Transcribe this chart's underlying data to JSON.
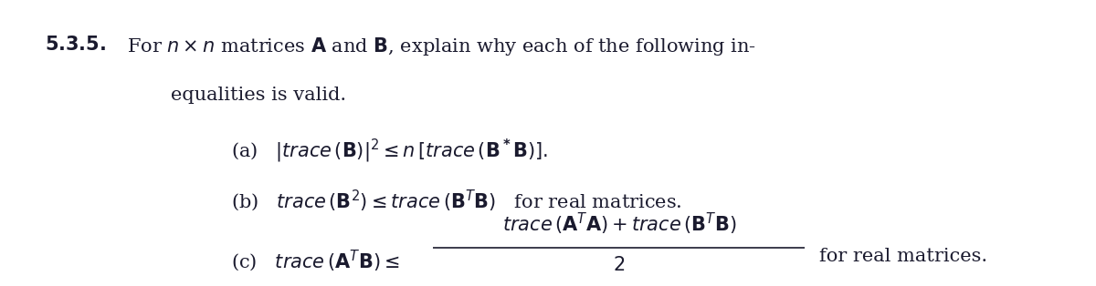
{
  "figsize": [
    12.0,
    3.14
  ],
  "dpi": 100,
  "background_color": "#ffffff",
  "title_bold": "5.3.5.",
  "title_text": " For $n \\times n$ matrices $\\mathbf{A}$ and $\\mathbf{B}$, explain why each of the following in-",
  "line2": "equalities is valid.",
  "item_a": "(a)   $|{\\it trace}\\,(\\mathbf{B})|^2 \\leq n\\,[{\\it trace}\\,(\\mathbf{B^*B})].$",
  "item_b": "(b)   ${\\it trace}\\,(\\mathbf{B}^2) \\leq {\\it trace}\\,(\\mathbf{B}^T\\mathbf{B})$  for real matrices.",
  "item_c_left": "(c)   ${\\it trace}\\,(\\mathbf{A}^T\\mathbf{B}) \\leq$",
  "item_c_num": "${\\it trace}\\,(\\mathbf{A}^T\\mathbf{A}) + {\\it trace}\\,(\\mathbf{B}^T\\mathbf{B})$",
  "item_c_den": "$2$",
  "item_c_right": "for real matrices.",
  "text_color": "#1a1a2e",
  "font_size_main": 15,
  "font_size_items": 15
}
